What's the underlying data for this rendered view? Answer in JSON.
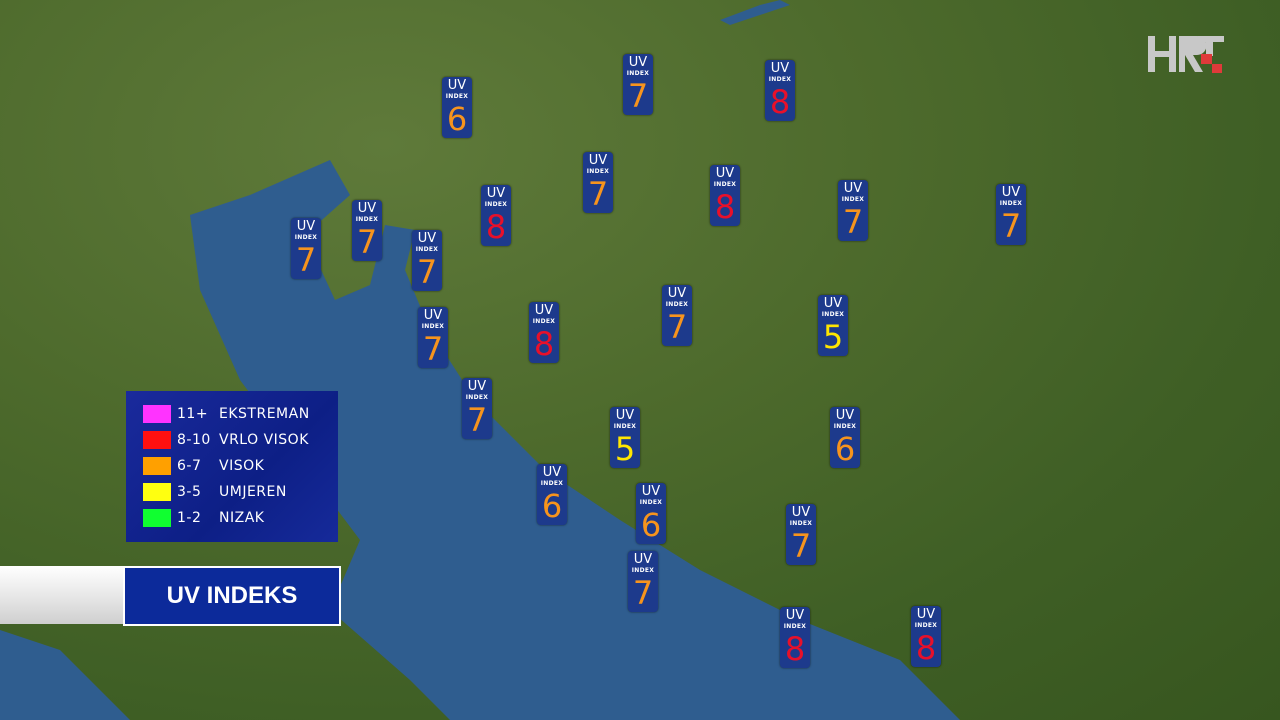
{
  "colors": {
    "extreme": "#ff33ff",
    "very_high": "#ff1010",
    "high": "#ffa000",
    "moderate": "#ffff10",
    "low": "#10ff30",
    "badge_bg": "#1d3a8c",
    "sea": "#2f5d8f"
  },
  "badge": {
    "uv": "UV",
    "index": "INDEX"
  },
  "legend": [
    {
      "range": "11+",
      "label": "EKSTREMAN",
      "color": "#ff33ff"
    },
    {
      "range": "8-10",
      "label": "VRLO VISOK",
      "color": "#ff1010"
    },
    {
      "range": "6-7",
      "label": "VISOK",
      "color": "#ffa000"
    },
    {
      "range": "3-5",
      "label": "UMJEREN",
      "color": "#ffff10"
    },
    {
      "range": "1-2",
      "label": "NIZAK",
      "color": "#10ff30"
    }
  ],
  "title": "UV INDEKS",
  "logo": "HRT",
  "uv_values": [
    6,
    7,
    8,
    7,
    8,
    8,
    7,
    7,
    7,
    7,
    7,
    7,
    5,
    8,
    7,
    7,
    5,
    6,
    6,
    6,
    7,
    7,
    8,
    8
  ]
}
